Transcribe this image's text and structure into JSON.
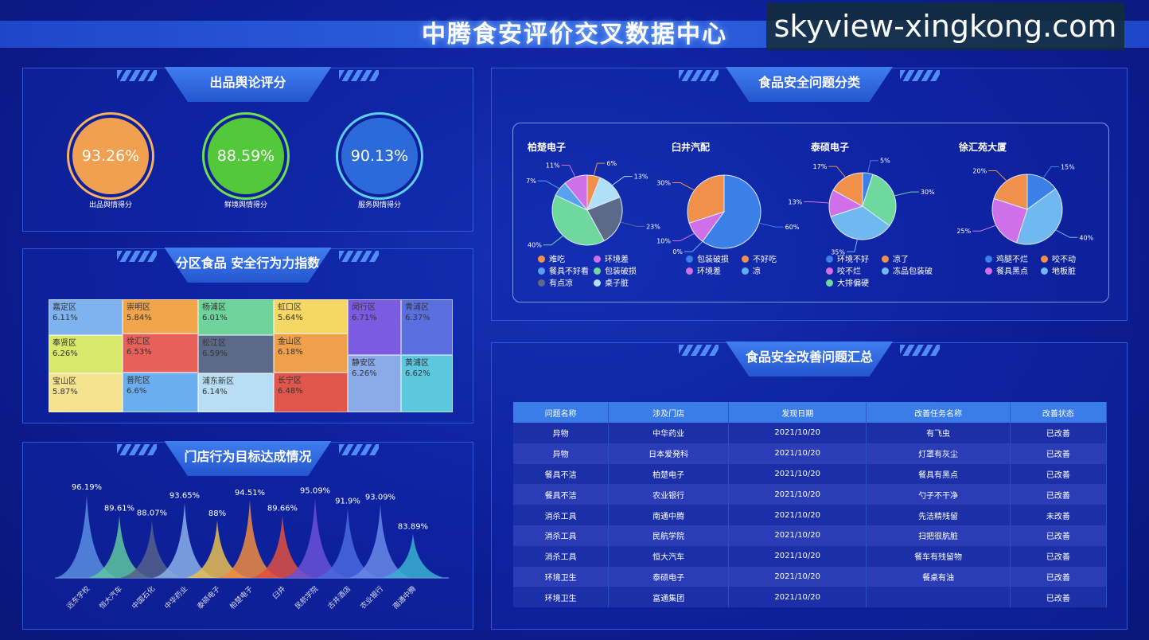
{
  "title": "中腾食安评价交叉数据中心",
  "panels": {
    "opinion": "出品舆论评分",
    "district": "分区食品 安全行为力指数",
    "stores": "门店行为目标达成情况",
    "category": "食品安全问题分类",
    "summary": "食品安全改善问题汇总"
  },
  "gauges": [
    {
      "value": "93.26%",
      "label": "出品舆情得分",
      "color": "#f0a050",
      "ring": "#f5b060"
    },
    {
      "value": "88.59%",
      "label": "鲜境舆情得分",
      "color": "#52c83a",
      "ring": "#6ee04a"
    },
    {
      "value": "90.13%",
      "label": "服务舆情得分",
      "color": "#2b6ad8",
      "ring": "#5ad0f0"
    }
  ],
  "treemap": [
    {
      "name": "嘉定区",
      "value": "6.11%",
      "color": "#7fb3f0"
    },
    {
      "name": "奉贤区",
      "value": "6.26%",
      "color": "#d7e86a"
    },
    {
      "name": "宝山区",
      "value": "5.87%",
      "color": "#f5e38f"
    },
    {
      "name": "崇明区",
      "value": "5.84%",
      "color": "#f0a54a"
    },
    {
      "name": "徐汇区",
      "value": "6.53%",
      "color": "#e8605a"
    },
    {
      "name": "普陀区",
      "value": "6.6%",
      "color": "#6aaef0"
    },
    {
      "name": "杨浦区",
      "value": "6.01%",
      "color": "#6fd39c"
    },
    {
      "name": "松江区",
      "value": "6.59%",
      "color": "#5c6a8a"
    },
    {
      "name": "浦东新区",
      "value": "6.14%",
      "color": "#b8def5"
    },
    {
      "name": "虹口区",
      "value": "5.64%",
      "color": "#f7d763"
    },
    {
      "name": "金山区",
      "value": "6.18%",
      "color": "#f0a04a"
    },
    {
      "name": "长宁区",
      "value": "6.48%",
      "color": "#e0564a"
    },
    {
      "name": "闵行区",
      "value": "6.71%",
      "color": "#7b5be0"
    },
    {
      "name": "静安区",
      "value": "6.26%",
      "color": "#8aaae8"
    },
    {
      "name": "青浦区",
      "value": "6.37%",
      "color": "#5a70e0"
    },
    {
      "name": "黄浦区",
      "value": "6.62%",
      "color": "#5cc8e0"
    }
  ],
  "chart_data": [
    {
      "type": "area",
      "title": "门店行为目标达成情况",
      "categories": [
        "远东学校",
        "恒大汽车",
        "中国石化",
        "中华药业",
        "泰硕电子",
        "柏楚电子",
        "臼井",
        "民航学院",
        "古井酒店",
        "农业银行",
        "南通中腾"
      ],
      "values": [
        96.19,
        89.61,
        88.07,
        93.65,
        88,
        94.51,
        89.66,
        95.09,
        91.9,
        93.09,
        83.89
      ],
      "labels": [
        "96.19%",
        "89.61%",
        "88.07%",
        "93.65%",
        "88%",
        "94.51%",
        "89.66%",
        "95.09%",
        "91.9%",
        "93.09%",
        "83.89%"
      ],
      "colors": [
        "#5b8ee0",
        "#5ec8a0",
        "#56628a",
        "#8ab0e8",
        "#e8c050",
        "#f08a40",
        "#e05040",
        "#6a50d8",
        "#4a6ae0",
        "#6a88e8",
        "#3ab0d0"
      ]
    },
    {
      "type": "pie",
      "title": "柏楚电子",
      "slices": [
        {
          "name": "难吃",
          "value": 6,
          "label": "6%",
          "color": "#f0904a"
        },
        {
          "name": "桌子脏",
          "value": 13,
          "label": "13%",
          "color": "#b0e0f8"
        },
        {
          "name": "有点凉",
          "value": 23,
          "label": "23%",
          "color": "#5c6a8a"
        },
        {
          "name": "包装破损",
          "value": 40,
          "label": "40%",
          "color": "#6fd89c"
        },
        {
          "name": "餐具不好看",
          "value": 7,
          "label": "7%",
          "color": "#5aa0f0"
        },
        {
          "name": "环境差",
          "value": 11,
          "label": "11%",
          "color": "#d070e8"
        }
      ],
      "legend": [
        "难吃",
        "环境差",
        "餐具不好看",
        "包装破损",
        "有点凉",
        "桌子脏"
      ]
    },
    {
      "type": "pie",
      "title": "臼井汽配",
      "slices": [
        {
          "name": "包装破损",
          "value": 60,
          "label": "60%",
          "color": "#3a80e8"
        },
        {
          "name": "凉",
          "value": 0,
          "label": "0%",
          "color": "#60b0f0"
        },
        {
          "name": "环境差",
          "value": 10,
          "label": "10%",
          "color": "#d070e8"
        },
        {
          "name": "不好吃",
          "value": 30,
          "label": "30%",
          "color": "#f0904a"
        }
      ],
      "legend": [
        "包装破损",
        "不好吃",
        "环境差",
        "凉"
      ]
    },
    {
      "type": "pie",
      "title": "泰硕电子",
      "slices": [
        {
          "name": "环境不好",
          "value": 5,
          "label": "5%",
          "color": "#3a80e8"
        },
        {
          "name": "大排偏硬",
          "value": 30,
          "label": "30%",
          "color": "#6fd89c"
        },
        {
          "name": "冻品包装破",
          "value": 35,
          "label": "35%",
          "color": "#70b8f0"
        },
        {
          "name": "咬不烂",
          "value": 13,
          "label": "13%",
          "color": "#d070e8"
        },
        {
          "name": "凉了",
          "value": 17,
          "label": "17%",
          "color": "#f0904a"
        }
      ],
      "legend": [
        "环境不好",
        "凉了",
        "咬不烂",
        "冻品包装破",
        "大排偏硬"
      ]
    },
    {
      "type": "pie",
      "title": "徐汇苑大厦",
      "slices": [
        {
          "name": "鸡腿不烂",
          "value": 15,
          "label": "15%",
          "color": "#3a80e8"
        },
        {
          "name": "地板脏",
          "value": 40,
          "label": "40%",
          "color": "#70b8f0"
        },
        {
          "name": "餐具黑点",
          "value": 25,
          "label": "25%",
          "color": "#d070e8"
        },
        {
          "name": "咬不动",
          "value": 20,
          "label": "20%",
          "color": "#f0904a"
        }
      ],
      "legend": [
        "鸡腿不烂",
        "咬不动",
        "餐具黑点",
        "地板脏"
      ]
    }
  ],
  "table": {
    "headers": [
      "问题名称",
      "涉及门店",
      "发现日期",
      "改善任务名称",
      "改善状态"
    ],
    "rows": [
      [
        "异物",
        "中华药业",
        "2021/10/20",
        "有飞虫",
        "已改善"
      ],
      [
        "异物",
        "日本爱発科",
        "2021/10/20",
        "灯罩有灰尘",
        "已改善"
      ],
      [
        "餐具不洁",
        "柏楚电子",
        "2021/10/20",
        "餐具有黑点",
        "已改善"
      ],
      [
        "餐具不洁",
        "农业银行",
        "2021/10/20",
        "勺子不干净",
        "已改善"
      ],
      [
        "消杀工具",
        "南通中腾",
        "2021/10/20",
        "先洁精残留",
        "未改善"
      ],
      [
        "消杀工具",
        "民航学院",
        "2021/10/20",
        "扫把很肮脏",
        "已改善"
      ],
      [
        "消杀工具",
        "恒大汽车",
        "2021/10/20",
        "餐车有残留物",
        "已改善"
      ],
      [
        "环境卫生",
        "泰硕电子",
        "2021/10/20",
        "餐桌有油",
        "已改善"
      ],
      [
        "环境卫生",
        "富通集团",
        "2021/10/20",
        "",
        "已改善"
      ]
    ]
  },
  "watermark": "skyview-xingkong.com"
}
